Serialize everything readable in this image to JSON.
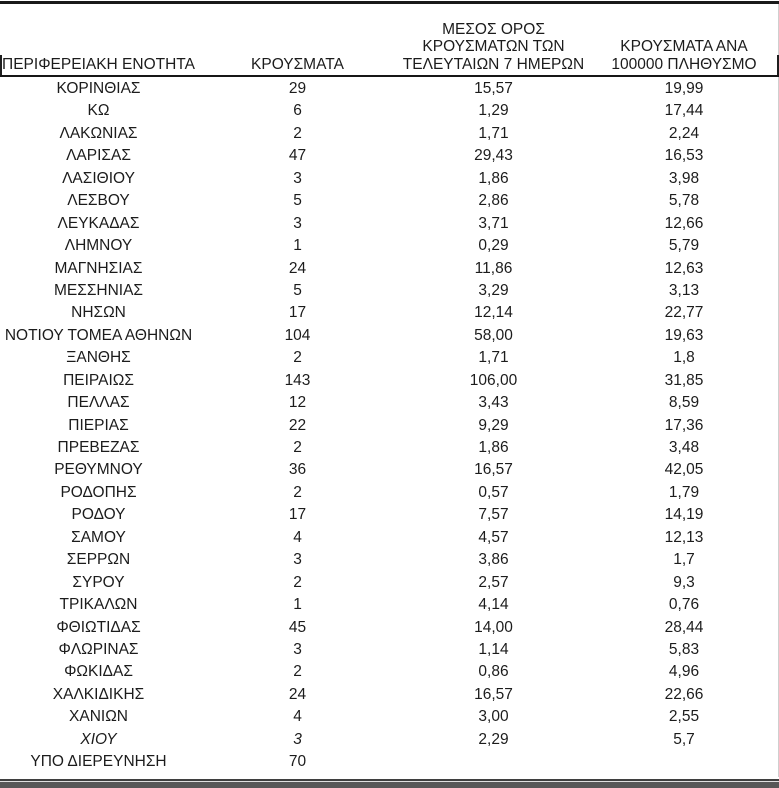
{
  "chart_data": {
    "type": "table",
    "columns": [
      "ΠΕΡΙΦΕΡΕΙΑΚΗ ΕΝΟΤΗΤΑ",
      "ΚΡΟΥΣΜΑΤΑ",
      "ΜΕΣΟΣ ΟΡΟΣ ΚΡΟΥΣΜΑΤΩΝ ΤΩΝ ΤΕΛΕΥΤΑΙΩΝ 7 ΗΜΕΡΩΝ",
      "ΚΡΟΥΣΜΑΤΑ ΑΝΑ 100000 ΠΛΗΘΥΣΜΟ"
    ],
    "column_lines": [
      [
        "ΠΕΡΙΦΕΡΕΙΑΚΗ ΕΝΟΤΗΤΑ"
      ],
      [
        "ΚΡΟΥΣΜΑΤΑ"
      ],
      [
        "ΜΕΣΟΣ ΟΡΟΣ",
        "ΚΡΟΥΣΜΑΤΩΝ ΤΩΝ",
        "ΤΕΛΕΥΤΑΙΩΝ 7 ΗΜΕΡΩΝ"
      ],
      [
        "ΚΡΟΥΣΜΑΤΑ ΑΝΑ",
        "100000 ΠΛΗΘΥΣΜΟ"
      ]
    ],
    "rows": [
      [
        "ΚΟΡΙΝΘΙΑΣ",
        "29",
        "15,57",
        "19,99"
      ],
      [
        "ΚΩ",
        "6",
        "1,29",
        "17,44"
      ],
      [
        "ΛΑΚΩΝΙΑΣ",
        "2",
        "1,71",
        "2,24"
      ],
      [
        "ΛΑΡΙΣΑΣ",
        "47",
        "29,43",
        "16,53"
      ],
      [
        "ΛΑΣΙΘΙΟΥ",
        "3",
        "1,86",
        "3,98"
      ],
      [
        "ΛΕΣΒΟΥ",
        "5",
        "2,86",
        "5,78"
      ],
      [
        "ΛΕΥΚΑΔΑΣ",
        "3",
        "3,71",
        "12,66"
      ],
      [
        "ΛΗΜΝΟΥ",
        "1",
        "0,29",
        "5,79"
      ],
      [
        "ΜΑΓΝΗΣΙΑΣ",
        "24",
        "11,86",
        "12,63"
      ],
      [
        "ΜΕΣΣΗΝΙΑΣ",
        "5",
        "3,29",
        "3,13"
      ],
      [
        "ΝΗΣΩΝ",
        "17",
        "12,14",
        "22,77"
      ],
      [
        "ΝΟΤΙΟΥ ΤΟΜΕΑ ΑΘΗΝΩΝ",
        "104",
        "58,00",
        "19,63"
      ],
      [
        "ΞΑΝΘΗΣ",
        "2",
        "1,71",
        "1,8"
      ],
      [
        "ΠΕΙΡΑΙΩΣ",
        "143",
        "106,00",
        "31,85"
      ],
      [
        "ΠΕΛΛΑΣ",
        "12",
        "3,43",
        "8,59"
      ],
      [
        "ΠΙΕΡΙΑΣ",
        "22",
        "9,29",
        "17,36"
      ],
      [
        "ΠΡΕΒΕΖΑΣ",
        "2",
        "1,86",
        "3,48"
      ],
      [
        "ΡΕΘΥΜΝΟΥ",
        "36",
        "16,57",
        "42,05"
      ],
      [
        "ΡΟΔΟΠΗΣ",
        "2",
        "0,57",
        "1,79"
      ],
      [
        "ΡΟΔΟΥ",
        "17",
        "7,57",
        "14,19"
      ],
      [
        "ΣΑΜΟΥ",
        "4",
        "4,57",
        "12,13"
      ],
      [
        "ΣΕΡΡΩΝ",
        "3",
        "3,86",
        "1,7"
      ],
      [
        "ΣΥΡΟΥ",
        "2",
        "2,57",
        "9,3"
      ],
      [
        "ΤΡΙΚΑΛΩΝ",
        "1",
        "4,14",
        "0,76"
      ],
      [
        "ΦΘΙΩΤΙΔΑΣ",
        "45",
        "14,00",
        "28,44"
      ],
      [
        "ΦΛΩΡΙΝΑΣ",
        "3",
        "1,14",
        "5,83"
      ],
      [
        "ΦΩΚΙΔΑΣ",
        "2",
        "0,86",
        "4,96"
      ],
      [
        "ΧΑΛΚΙΔΙΚΗΣ",
        "24",
        "16,57",
        "22,66"
      ],
      [
        "ΧΑΝΙΩΝ",
        "4",
        "3,00",
        "2,55"
      ],
      [
        "ΧΙΟΥ",
        "3",
        "2,29",
        "5,7"
      ],
      [
        "ΥΠΟ ΔΙΕΡΕΥΝΗΣΗ",
        "70",
        "",
        ""
      ]
    ],
    "italic_row_index": 29,
    "italic_cells": [
      0,
      1
    ],
    "colors": {
      "text": "#1c1c1c",
      "rule": "#171717",
      "bottom_band": "#575757"
    }
  }
}
